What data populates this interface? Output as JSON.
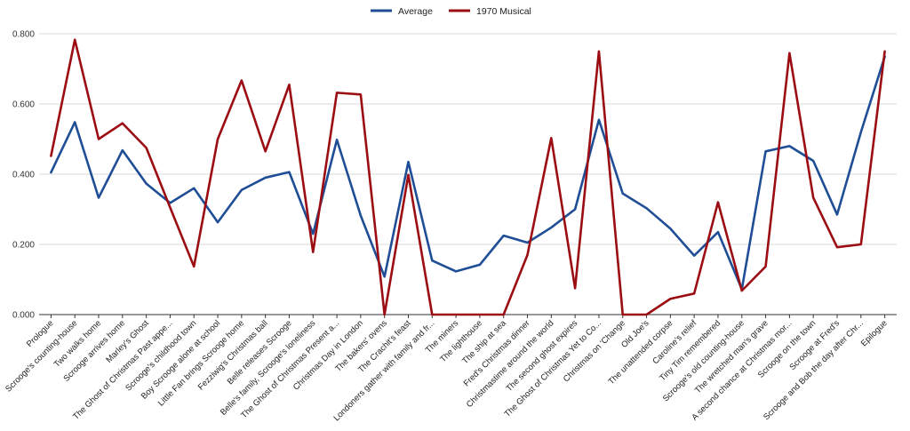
{
  "chart_data": {
    "type": "line",
    "title": "",
    "xlabel": "",
    "ylabel": "",
    "ylim": [
      0,
      0.8
    ],
    "yticks": [
      "0.000",
      "0.200",
      "0.400",
      "0.600",
      "0.800"
    ],
    "ytick_values": [
      0,
      0.2,
      0.4,
      0.6,
      0.8
    ],
    "grid": true,
    "legend_position": "top-center",
    "categories": [
      "Prologue",
      "Scrooge's counting-house",
      "Two walks home",
      "Scrooge arrives home",
      "Marley's Ghost",
      "The Ghost of Christmas Past appe...",
      "Scrooge's childhood town",
      "Boy Scrooge alone at school",
      "Little Fan brings Scrooge home",
      "Fezziwig's Christmas ball",
      "Belle releases Scrooge",
      "Belle's family, Scrooge's loneliness",
      "The Ghost of Christmas Present a...",
      "Christmas Day in London",
      "The bakers' ovens",
      "The Crachit's feast",
      "Londoners gather with family and fr...",
      "The miners",
      "The lighthouse",
      "The ship at sea",
      "Fred's Christmas dinner",
      "Christmastime around the world",
      "The second ghost expires",
      "The Ghost of Christmas Yet to Co...",
      "Christmas on 'Change",
      "Old Joe's",
      "The unattended corpse",
      "Caroline's relief",
      "Tiny Tim remembered",
      "Scrooge's old counting-house",
      "The wretched man's grave",
      "A second chance at Christmas mor...",
      "Scrooge on the town",
      "Scrooge at Fred's",
      "Scrooge and Bob the day after Chr...",
      "Epilogue"
    ],
    "series": [
      {
        "name": "Average",
        "color": "#1f4e96",
        "values": [
          0.405,
          0.548,
          0.333,
          0.468,
          0.373,
          0.318,
          0.36,
          0.263,
          0.355,
          0.39,
          0.406,
          0.23,
          0.498,
          0.282,
          0.108,
          0.435,
          0.154,
          0.123,
          0.142,
          0.225,
          0.205,
          0.248,
          0.3,
          0.555,
          0.345,
          0.303,
          0.245,
          0.168,
          0.235,
          0.072,
          0.465,
          0.48,
          0.438,
          0.285,
          0.52,
          0.735
        ]
      },
      {
        "name": "1970 Musical",
        "color": "#9b0d12",
        "values": [
          0.452,
          0.783,
          0.5,
          0.545,
          0.475,
          0.305,
          0.137,
          0.5,
          0.667,
          0.465,
          0.655,
          0.178,
          0.632,
          0.627,
          0.0,
          0.398,
          0.0,
          0.0,
          0.0,
          0.0,
          0.17,
          0.503,
          0.075,
          0.75,
          0.0,
          0.0,
          0.045,
          0.06,
          0.32,
          0.068,
          0.137,
          0.745,
          0.333,
          0.192,
          0.2,
          0.75
        ]
      }
    ]
  }
}
